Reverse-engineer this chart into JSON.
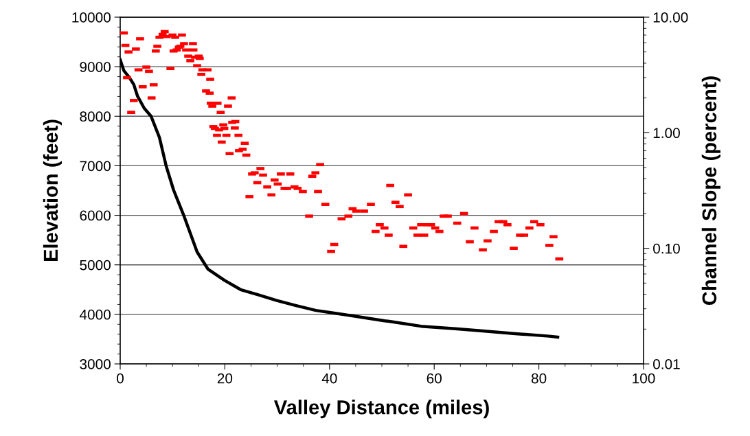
{
  "chart_data": {
    "type": "line",
    "xlabel": "Valley Distance (miles)",
    "ylabel": "Elevation (feet)",
    "y2label": "Channel Slope (percent)",
    "xlim": [
      0,
      100
    ],
    "xticks": [
      0,
      20,
      40,
      60,
      80,
      100
    ],
    "ylim": [
      3000,
      10000
    ],
    "yticks": [
      3000,
      4000,
      5000,
      6000,
      7000,
      8000,
      9000,
      10000
    ],
    "y2lim": [
      0.01,
      10
    ],
    "y2ticks": [
      {
        "value": 0.01,
        "label": "0.01"
      },
      {
        "value": 0.1,
        "label": "0.10"
      },
      {
        "value": 1,
        "label": "1.00"
      },
      {
        "value": 10,
        "label": "10.00"
      }
    ],
    "log": "y2",
    "grid": "y",
    "series": [
      {
        "color": "#000000",
        "x": [
          0,
          0.7,
          1.7,
          2.6,
          3.3,
          4.6,
          5.9,
          7.5,
          8.8,
          10.2,
          12.1,
          14.7,
          16.8,
          19.9,
          23.0,
          26.5,
          29.9,
          33.5,
          37.4,
          40.0,
          44.4,
          50.5,
          51.4,
          57.5,
          64.0,
          68.9,
          75.5,
          82.0,
          83.6
        ],
        "values": [
          9140,
          8920,
          8790,
          8640,
          8410,
          8160,
          8000,
          7570,
          6990,
          6510,
          6010,
          5260,
          4910,
          4690,
          4500,
          4390,
          4280,
          4180,
          4080,
          4040,
          3970,
          3870,
          3860,
          3760,
          3710,
          3670,
          3610,
          3560,
          3540
        ]
      },
      {
        "type": "scatter",
        "axis": "y2",
        "color": "#ff0000",
        "x": [
          0.7,
          1.0,
          1.6,
          3.8,
          3.0,
          8.5,
          7.5,
          8.1,
          8.9,
          10.0,
          10.5,
          11.8,
          7.1,
          6.8,
          10.2,
          10.8,
          11.2,
          11.5,
          12.2,
          12.6,
          13.9,
          14.0,
          13.0,
          13.4,
          14.3,
          15.0,
          15.2,
          14.7,
          9.6,
          3.5,
          5.0,
          5.5,
          1.3,
          4.3,
          6.4,
          15.7,
          16.7,
          15.5,
          17.2,
          16.4,
          17.1,
          2.6,
          6.0,
          2.1,
          17.3,
          17.6,
          18.6,
          19.2,
          20.6,
          21.3,
          17.8,
          18.1,
          18.9,
          19.7,
          19.9,
          21.4,
          22.0,
          21.9,
          18.5,
          20.3,
          22.6,
          19.4,
          23.8,
          23.4,
          22.7,
          20.9,
          24.1,
          25.2,
          26.8,
          25.7,
          27.3,
          30.7,
          32.5,
          38.2,
          37.3,
          36.7,
          26.2,
          29.5,
          30.1,
          28.1,
          31.4,
          31.9,
          33.3,
          33.9,
          34.9,
          37.8,
          28.9,
          24.7,
          39.2,
          36.1,
          42.3,
          43.6,
          44.4,
          45.1,
          46.6,
          47.9,
          51.6,
          52.6,
          53.4,
          55.0,
          61.8,
          62.6,
          65.7,
          64.4,
          48.8,
          49.6,
          50.5,
          51.3,
          56.0,
          56.8,
          57.5,
          58.1,
          58.8,
          59.4,
          60.2,
          61.0,
          67.7,
          66.8,
          69.3,
          70.2,
          71.4,
          72.3,
          73.2,
          74.0,
          75.2,
          76.4,
          77.2,
          78.2,
          79.1,
          80.3,
          82.0,
          82.8,
          83.9,
          40.9,
          40.3,
          54.1
        ],
        "values": [
          7.3,
          5.7,
          5.0,
          6.5,
          5.3,
          7.5,
          6.7,
          7.1,
          6.8,
          7.0,
          6.7,
          7.0,
          5.6,
          5.1,
          5.1,
          5.2,
          5.5,
          5.6,
          5.9,
          5.2,
          5.9,
          5.2,
          4.6,
          4.2,
          4.5,
          4.6,
          4.4,
          3.8,
          3.6,
          3.5,
          3.7,
          3.4,
          3.0,
          2.5,
          2.6,
          3.5,
          3.5,
          3.2,
          2.9,
          2.3,
          2.2,
          1.9,
          2.0,
          1.5,
          1.8,
          1.7,
          1.8,
          1.5,
          1.7,
          2.0,
          1.13,
          1.09,
          1.06,
          1.17,
          1.09,
          1.23,
          1.25,
          1.1,
          0.95,
          0.95,
          0.95,
          0.83,
          0.81,
          0.72,
          0.7,
          0.66,
          0.64,
          0.44,
          0.49,
          0.45,
          0.43,
          0.44,
          0.44,
          0.53,
          0.45,
          0.42,
          0.37,
          0.39,
          0.36,
          0.34,
          0.33,
          0.33,
          0.34,
          0.33,
          0.31,
          0.31,
          0.29,
          0.28,
          0.24,
          0.19,
          0.18,
          0.19,
          0.22,
          0.21,
          0.21,
          0.24,
          0.35,
          0.25,
          0.23,
          0.29,
          0.19,
          0.19,
          0.2,
          0.165,
          0.14,
          0.16,
          0.15,
          0.13,
          0.15,
          0.13,
          0.16,
          0.13,
          0.16,
          0.16,
          0.15,
          0.14,
          0.15,
          0.114,
          0.097,
          0.116,
          0.14,
          0.17,
          0.17,
          0.16,
          0.1,
          0.13,
          0.13,
          0.15,
          0.17,
          0.16,
          0.106,
          0.126,
          0.081,
          0.108,
          0.094,
          0.104
        ]
      }
    ]
  }
}
